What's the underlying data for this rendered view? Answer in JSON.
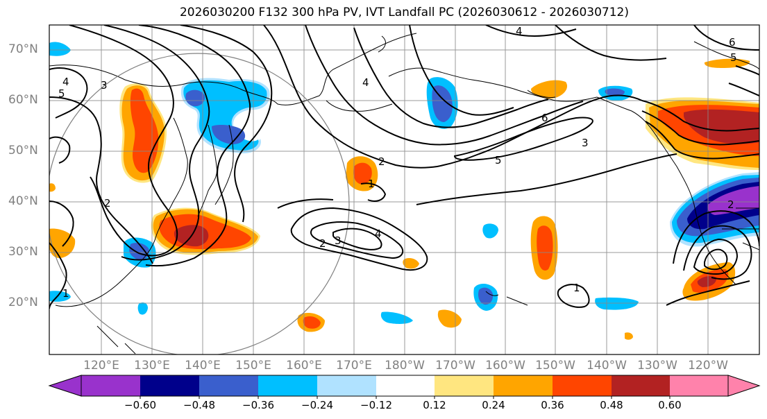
{
  "title": "2026030200 F132 300 hPa PV, IVT Landfall PC (2026030612 - 2026030712)",
  "lat_labels": [
    "70°N",
    "60°N",
    "50°N",
    "40°N",
    "30°N",
    "20°N"
  ],
  "lon_labels": [
    "120°E",
    "130°E",
    "140°E",
    "150°E",
    "160°E",
    "170°E",
    "180°W",
    "170°W",
    "160°W",
    "150°W",
    "140°W",
    "130°W",
    "120°W"
  ],
  "colorbar": {
    "ticks": [
      "−0.60",
      "−0.48",
      "−0.36",
      "−0.24",
      "−0.12",
      "0.12",
      "0.24",
      "0.36",
      "0.48",
      "0.60"
    ],
    "colors": [
      "#9932CC",
      "#00008B",
      "#3A5FCD",
      "#00BFFF",
      "#B0E2FF",
      "#FFFFFF",
      "#FFE680",
      "#FFA500",
      "#FF4500",
      "#B22222",
      "#FF82AB"
    ]
  },
  "contour_labels": [
    "4",
    "6",
    "5",
    "4",
    "3",
    "5",
    "4",
    "2",
    "6",
    "5",
    "3",
    "2",
    "1",
    "2",
    "3",
    "4",
    "1",
    "1",
    "2"
  ]
}
